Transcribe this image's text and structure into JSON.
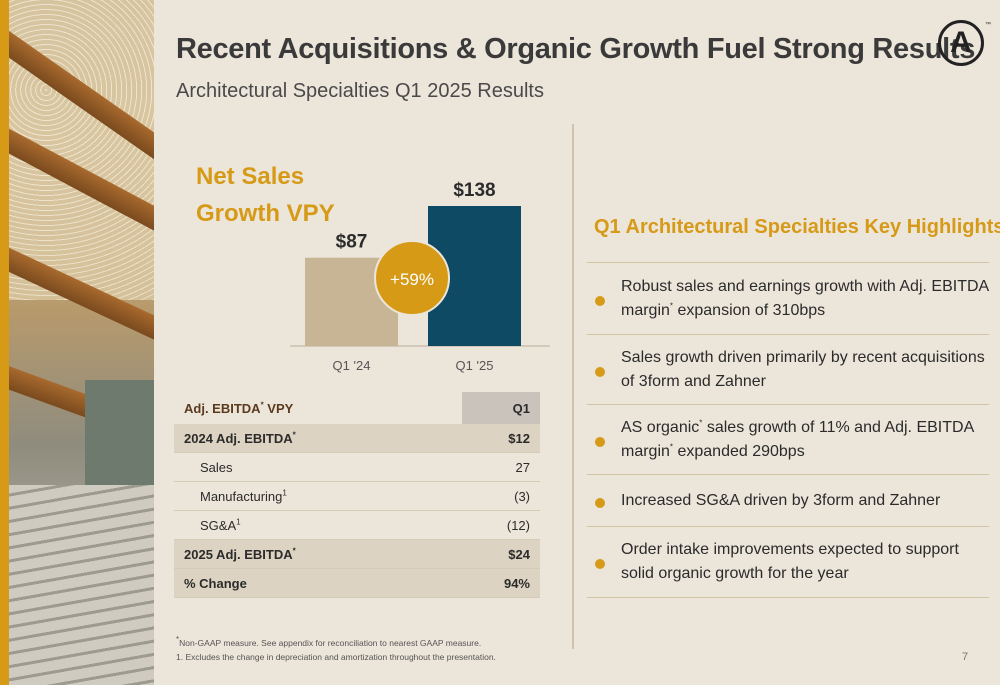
{
  "header": {
    "title": "Recent Acquisitions & Organic Growth Fuel Strong Results",
    "subtitle": "Architectural Specialties Q1 2025 Results",
    "logo_letter": "A",
    "logo_tm": "™"
  },
  "net_sales": {
    "title_line1": "Net Sales",
    "title_line2": "Growth VPY",
    "growth_badge": "+59%",
    "colors": {
      "q1_24": "#c8b596",
      "q1_25": "#0e4a63",
      "badge": "#d69a17"
    }
  },
  "chart_data": {
    "type": "bar",
    "categories": [
      "Q1 '24",
      "Q1 '25"
    ],
    "values": [
      87,
      138
    ],
    "data_labels": [
      "$87",
      "$138"
    ],
    "title": "",
    "xlabel": "",
    "ylabel": ""
  },
  "ebitda_table": {
    "header_label": "Adj. EBITDA",
    "header_label_sup": "*",
    "header_label_suffix": " VPY",
    "column": "Q1",
    "rows": [
      {
        "label": "2024 Adj. EBITDA",
        "sup": "*",
        "value": "$12",
        "style": "shade"
      },
      {
        "label": "Sales",
        "sup": "",
        "value": "27",
        "style": "indent"
      },
      {
        "label": "Manufacturing",
        "sup": "1",
        "value": "(3)",
        "style": "indent"
      },
      {
        "label": "SG&A",
        "sup": "1",
        "value": "(12)",
        "style": "indent"
      },
      {
        "label": "2025 Adj. EBITDA",
        "sup": "*",
        "value": "$24",
        "style": "shade"
      },
      {
        "label": "% Change",
        "sup": "",
        "value": "94%",
        "style": "shade"
      }
    ]
  },
  "highlights": {
    "title": "Q1 Architectural Specialties Key Highlights",
    "items": [
      {
        "parts": [
          "Robust sales and earnings growth with Adj. EBITDA margin",
          "*",
          " expansion of 310bps"
        ]
      },
      {
        "parts": [
          "Sales growth driven primarily by recent acquisitions of 3form and Zahner",
          "",
          ""
        ]
      },
      {
        "parts": [
          "AS organic",
          "*",
          " sales growth of 11% and Adj. EBITDA margin",
          "*",
          " expanded 290bps"
        ]
      },
      {
        "parts": [
          "Increased SG&A driven by 3form and Zahner",
          "",
          ""
        ]
      },
      {
        "parts": [
          "Order intake improvements expected to support solid organic growth for the year",
          "",
          ""
        ]
      }
    ]
  },
  "footnotes": {
    "note_star_sup": "*",
    "note_star": "Non-GAAP measure. See appendix for reconciliation to nearest GAAP measure.",
    "note_1": "1.  Excludes the change in depreciation and amortization throughout the presentation."
  },
  "page_number": "7"
}
